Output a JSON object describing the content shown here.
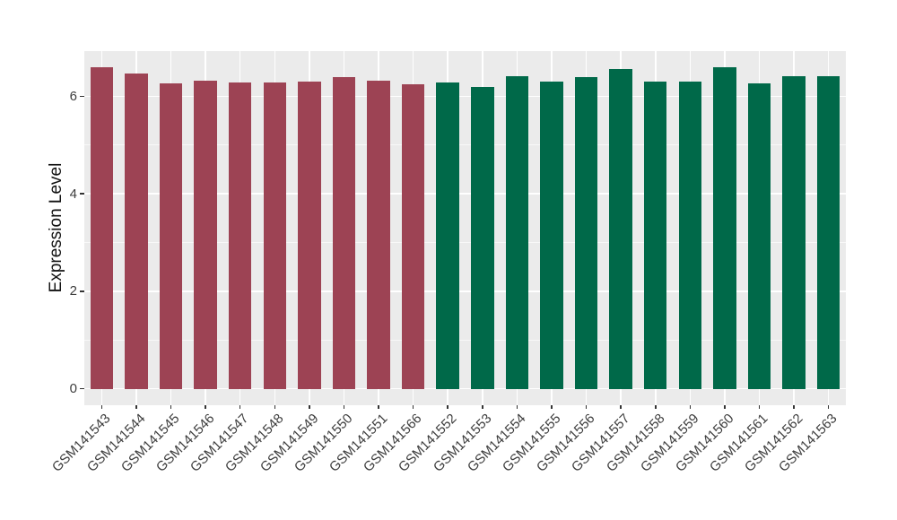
{
  "figure": {
    "colors": {
      "background": "#FFFFFF",
      "panel_background": "#EBEBEB",
      "grid_major": "#FFFFFF",
      "grid_minor": "#FFFFFF",
      "axis_text": "#3D3D3D",
      "axis_title": "#111111",
      "group_left_bars": "#9D4354",
      "group_right_bars": "#006949"
    }
  },
  "chart_data": {
    "type": "bar",
    "title": "",
    "xlabel": "",
    "ylabel": "Expression Level",
    "ylim": [
      -0.34,
      6.93
    ],
    "yticks": [
      0,
      2,
      4,
      6
    ],
    "minor_gridlines": [
      1,
      3,
      5
    ],
    "grid": "on",
    "legend": "none",
    "bar_width_fraction": 0.66,
    "x_label_angle_deg": 45,
    "groups": [
      {
        "name": "left-group",
        "color": "#9D4354"
      },
      {
        "name": "right-group",
        "color": "#006949"
      }
    ],
    "bars": [
      {
        "label": "GSM141543",
        "value": 6.6,
        "group": 0
      },
      {
        "label": "GSM141544",
        "value": 6.47,
        "group": 0
      },
      {
        "label": "GSM141545",
        "value": 6.26,
        "group": 0
      },
      {
        "label": "GSM141546",
        "value": 6.33,
        "group": 0
      },
      {
        "label": "GSM141547",
        "value": 6.29,
        "group": 0
      },
      {
        "label": "GSM141548",
        "value": 6.29,
        "group": 0
      },
      {
        "label": "GSM141549",
        "value": 6.3,
        "group": 0
      },
      {
        "label": "GSM141550",
        "value": 6.4,
        "group": 0
      },
      {
        "label": "GSM141551",
        "value": 6.33,
        "group": 0
      },
      {
        "label": "GSM141566",
        "value": 6.25,
        "group": 0
      },
      {
        "label": "GSM141552",
        "value": 6.28,
        "group": 1
      },
      {
        "label": "GSM141553",
        "value": 6.2,
        "group": 1
      },
      {
        "label": "GSM141554",
        "value": 6.41,
        "group": 1
      },
      {
        "label": "GSM141555",
        "value": 6.3,
        "group": 1
      },
      {
        "label": "GSM141556",
        "value": 6.4,
        "group": 1
      },
      {
        "label": "GSM141557",
        "value": 6.56,
        "group": 1
      },
      {
        "label": "GSM141558",
        "value": 6.3,
        "group": 1
      },
      {
        "label": "GSM141559",
        "value": 6.31,
        "group": 1
      },
      {
        "label": "GSM141560",
        "value": 6.59,
        "group": 1
      },
      {
        "label": "GSM141561",
        "value": 6.27,
        "group": 1
      },
      {
        "label": "GSM141562",
        "value": 6.42,
        "group": 1
      },
      {
        "label": "GSM141563",
        "value": 6.41,
        "group": 1
      }
    ]
  }
}
